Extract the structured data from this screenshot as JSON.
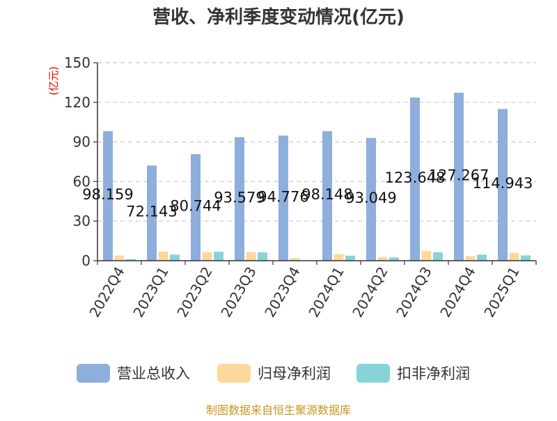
{
  "chart_data": {
    "type": "bar",
    "title": "营收、净利季度变动情况(亿元)",
    "ylabel": "(亿元)",
    "ylim": [
      0,
      150
    ],
    "yticks": [
      0,
      30,
      60,
      90,
      120,
      150
    ],
    "grid": true,
    "legend_position": "bottom",
    "categories": [
      "2022Q4",
      "2023Q1",
      "2023Q2",
      "2023Q3",
      "2023Q4",
      "2024Q1",
      "2024Q2",
      "2024Q3",
      "2024Q4",
      "2025Q1"
    ],
    "series": [
      {
        "name": "营业总收入",
        "color": "#8eaedc",
        "values": [
          98.159,
          72.143,
          80.744,
          93.579,
          94.776,
          98.148,
          93.049,
          123.648,
          127.267,
          114.943
        ],
        "labels": [
          "98.159",
          "72.143",
          "80.744",
          "93.579",
          "94.776",
          "98.148",
          "93.049",
          "123.648",
          "127.267",
          "114.943"
        ]
      },
      {
        "name": "归母净利润",
        "color": "#fdd89a",
        "values": [
          3.9,
          6.9,
          6.4,
          6.5,
          2.0,
          4.9,
          2.6,
          7.3,
          3.6,
          6.0
        ]
      },
      {
        "name": "扣非净利润",
        "color": "#86d4d8",
        "values": [
          1.2,
          4.6,
          6.8,
          6.3,
          0.3,
          3.8,
          2.5,
          6.4,
          4.6,
          4.0
        ]
      }
    ]
  },
  "source": "制图数据来自恒生聚源数据库"
}
